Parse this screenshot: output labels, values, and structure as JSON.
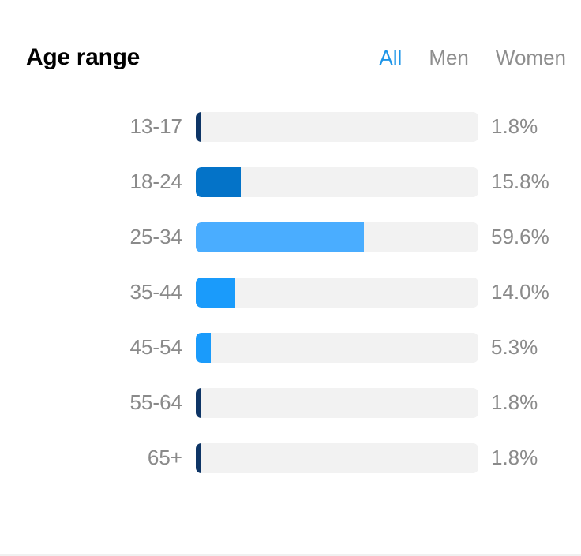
{
  "header": {
    "title": "Age range",
    "tabs": [
      {
        "label": "All",
        "active": true
      },
      {
        "label": "Men",
        "active": false
      },
      {
        "label": "Women",
        "active": false
      }
    ]
  },
  "colors": {
    "accent": "#1d95e8",
    "track": "#f2f2f2",
    "text_muted": "#8a8a8a"
  },
  "chart_data": {
    "type": "bar",
    "orientation": "horizontal",
    "title": "Age range",
    "categories": [
      "13-17",
      "18-24",
      "25-34",
      "35-44",
      "45-54",
      "55-64",
      "65+"
    ],
    "values": [
      1.8,
      15.8,
      59.6,
      14.0,
      5.3,
      1.8,
      1.8
    ],
    "value_labels": [
      "1.8%",
      "15.8%",
      "59.6%",
      "14.0%",
      "5.3%",
      "1.8%",
      "1.8%"
    ],
    "colors": [
      "#0e3566",
      "#0473c8",
      "#4aadff",
      "#1a9bfb",
      "#1a9bfb",
      "#0e3566",
      "#0e3566"
    ],
    "xlim": [
      0,
      100
    ],
    "grid": false,
    "legend": "none"
  }
}
